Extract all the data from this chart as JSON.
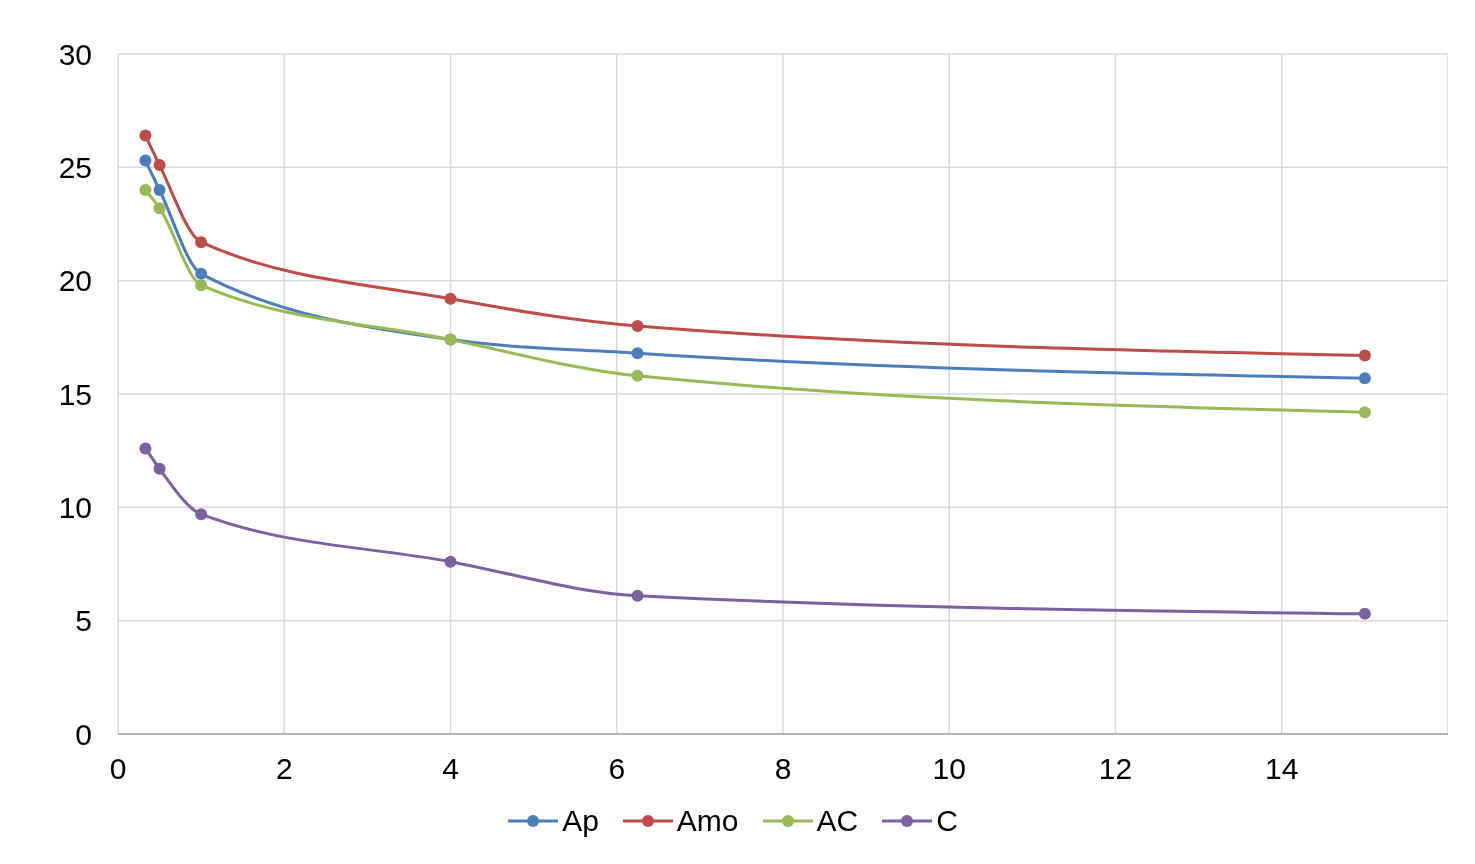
{
  "chart_data": {
    "type": "line",
    "x": [
      0.33,
      0.5,
      1,
      4,
      6.25,
      15
    ],
    "xlim": [
      0,
      16
    ],
    "xticks": [
      0,
      2,
      4,
      6,
      8,
      10,
      12,
      14
    ],
    "ylim": [
      0,
      30
    ],
    "yticks": [
      0,
      5,
      10,
      15,
      20,
      25,
      30
    ],
    "grid": true,
    "legend": "bottom",
    "marker": "circle",
    "line_style": "solid",
    "series": [
      {
        "name": "Ap",
        "color": "#4a7ebb",
        "values": [
          25.3,
          24.0,
          20.3,
          17.4,
          16.8,
          15.7
        ]
      },
      {
        "name": "Amo",
        "color": "#be4b48",
        "values": [
          26.4,
          25.1,
          21.7,
          19.2,
          18.0,
          16.7
        ]
      },
      {
        "name": "AC",
        "color": "#98b954",
        "values": [
          24.0,
          23.2,
          19.8,
          17.4,
          15.8,
          14.2
        ]
      },
      {
        "name": "C",
        "color": "#7d60a0",
        "values": [
          12.6,
          11.7,
          9.7,
          7.6,
          6.1,
          5.3
        ]
      }
    ]
  }
}
